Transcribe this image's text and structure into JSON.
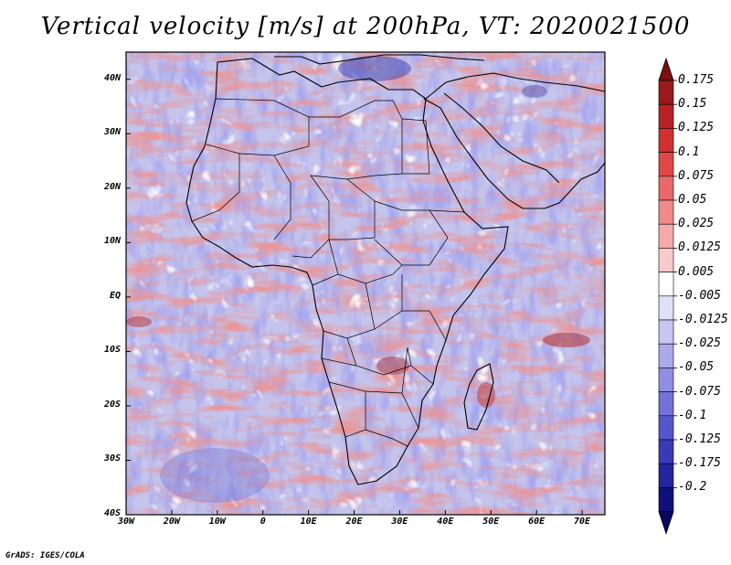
{
  "title": "Vertical velocity [m/s] at 200hPa, VT: 2020021500",
  "credit": "GrADS: IGES/COLA",
  "map": {
    "lon_range": [
      -30,
      75
    ],
    "lat_range": [
      -40,
      45
    ],
    "lat_ticks": [
      "40N",
      "30N",
      "20N",
      "10N",
      "EQ",
      "10S",
      "20S",
      "30S",
      "40S"
    ],
    "lon_ticks": [
      "30W",
      "20W",
      "10W",
      "0",
      "10E",
      "20E",
      "30E",
      "40E",
      "50E",
      "60E",
      "70E"
    ],
    "field": "vertical velocity",
    "units": "m/s",
    "level": "200hPa",
    "valid_time": "2020021500"
  },
  "colorbar": {
    "labels": [
      "0.175",
      "0.15",
      "0.125",
      "0.1",
      "0.075",
      "0.05",
      "0.025",
      "0.0125",
      "0.005",
      "-0.005",
      "-0.0125",
      "-0.025",
      "-0.05",
      "-0.075",
      "-0.1",
      "-0.125",
      "-0.175",
      "-0.2"
    ],
    "colors": [
      "#9a1a1a",
      "#b82222",
      "#d03030",
      "#e04848",
      "#ea6868",
      "#f08a8a",
      "#f5aaaa",
      "#f9caca",
      "#ffffff",
      "#e0e0f8",
      "#c6c6f2",
      "#aaaaea",
      "#8e8ee2",
      "#7272d8",
      "#5656cc",
      "#3a3ab8",
      "#24249c",
      "#10107c"
    ],
    "top_color": "#7a1010",
    "bottom_color": "#08085e"
  }
}
